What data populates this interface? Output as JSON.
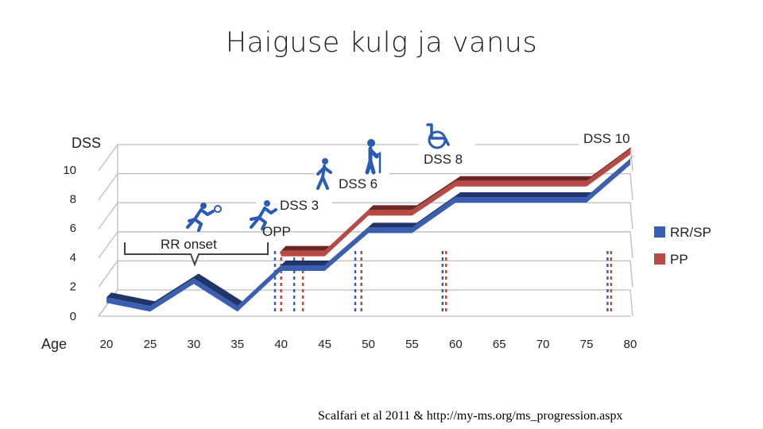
{
  "slide": {
    "title": "Haiguse kulg ja vanus",
    "citation": "Scalfari et al 2011 & http://my-ms.org/ms_progression.aspx"
  },
  "colors": {
    "rrsp": "#3a5fb0",
    "rrsp_dark": "#22356b",
    "pp": "#b84a46",
    "pp_dark": "#6e2523",
    "grid": "#bdbdbd",
    "icon": "#2a5bb5"
  },
  "chart_data": {
    "type": "line",
    "xlabel": "Age",
    "ylabel": "DSS",
    "x_ticks": [
      20,
      25,
      30,
      35,
      40,
      45,
      50,
      55,
      60,
      65,
      70,
      75,
      80
    ],
    "y_ticks": [
      0,
      2,
      4,
      6,
      8,
      10
    ],
    "xlim": [
      20,
      80
    ],
    "ylim": [
      0,
      10
    ],
    "grid": true,
    "legend": "right",
    "series": [
      {
        "name": "RR/SP",
        "color": "#3a5fb0",
        "x": [
          20,
          25,
          30,
          35,
          40,
          45,
          50,
          55,
          60,
          65,
          70,
          75,
          80
        ],
        "y": [
          1.3,
          0.7,
          2.6,
          0.7,
          3.5,
          3.5,
          6.1,
          6.1,
          8.2,
          8.2,
          8.2,
          8.2,
          10.8
        ]
      },
      {
        "name": "PP",
        "color": "#b84a46",
        "x": [
          40,
          45,
          50,
          55,
          60,
          65,
          70,
          75,
          80
        ],
        "y": [
          4.5,
          4.5,
          7.3,
          7.3,
          9.3,
          9.3,
          9.3,
          9.3,
          11.5
        ]
      }
    ],
    "vlines": [
      {
        "x": 39.3,
        "color": "#3a5fb0"
      },
      {
        "x": 40.0,
        "color": "#b84a46"
      },
      {
        "x": 41.5,
        "color": "#3a5fb0"
      },
      {
        "x": 42.5,
        "color": "#b84a46"
      },
      {
        "x": 48.5,
        "color": "#3a5fb0"
      },
      {
        "x": 49.2,
        "color": "#b84a46"
      },
      {
        "x": 58.5,
        "color": "#3a5fb0"
      },
      {
        "x": 58.9,
        "color": "#b84a46"
      },
      {
        "x": 77.4,
        "color": "#3a5fb0"
      },
      {
        "x": 77.8,
        "color": "#b84a46"
      }
    ],
    "annotations": [
      {
        "id": "rr-onset",
        "text": "RR onset"
      },
      {
        "id": "opp",
        "text": "OPP"
      },
      {
        "id": "dss3",
        "text": "DSS 3"
      },
      {
        "id": "dss6",
        "text": "DSS 6"
      },
      {
        "id": "dss8",
        "text": "DSS 8"
      },
      {
        "id": "dss10",
        "text": "DSS 10"
      }
    ],
    "icons": [
      "runner-icon",
      "runner-icon",
      "walker-icon",
      "cane-walker-icon",
      "wheelchair-icon"
    ]
  }
}
